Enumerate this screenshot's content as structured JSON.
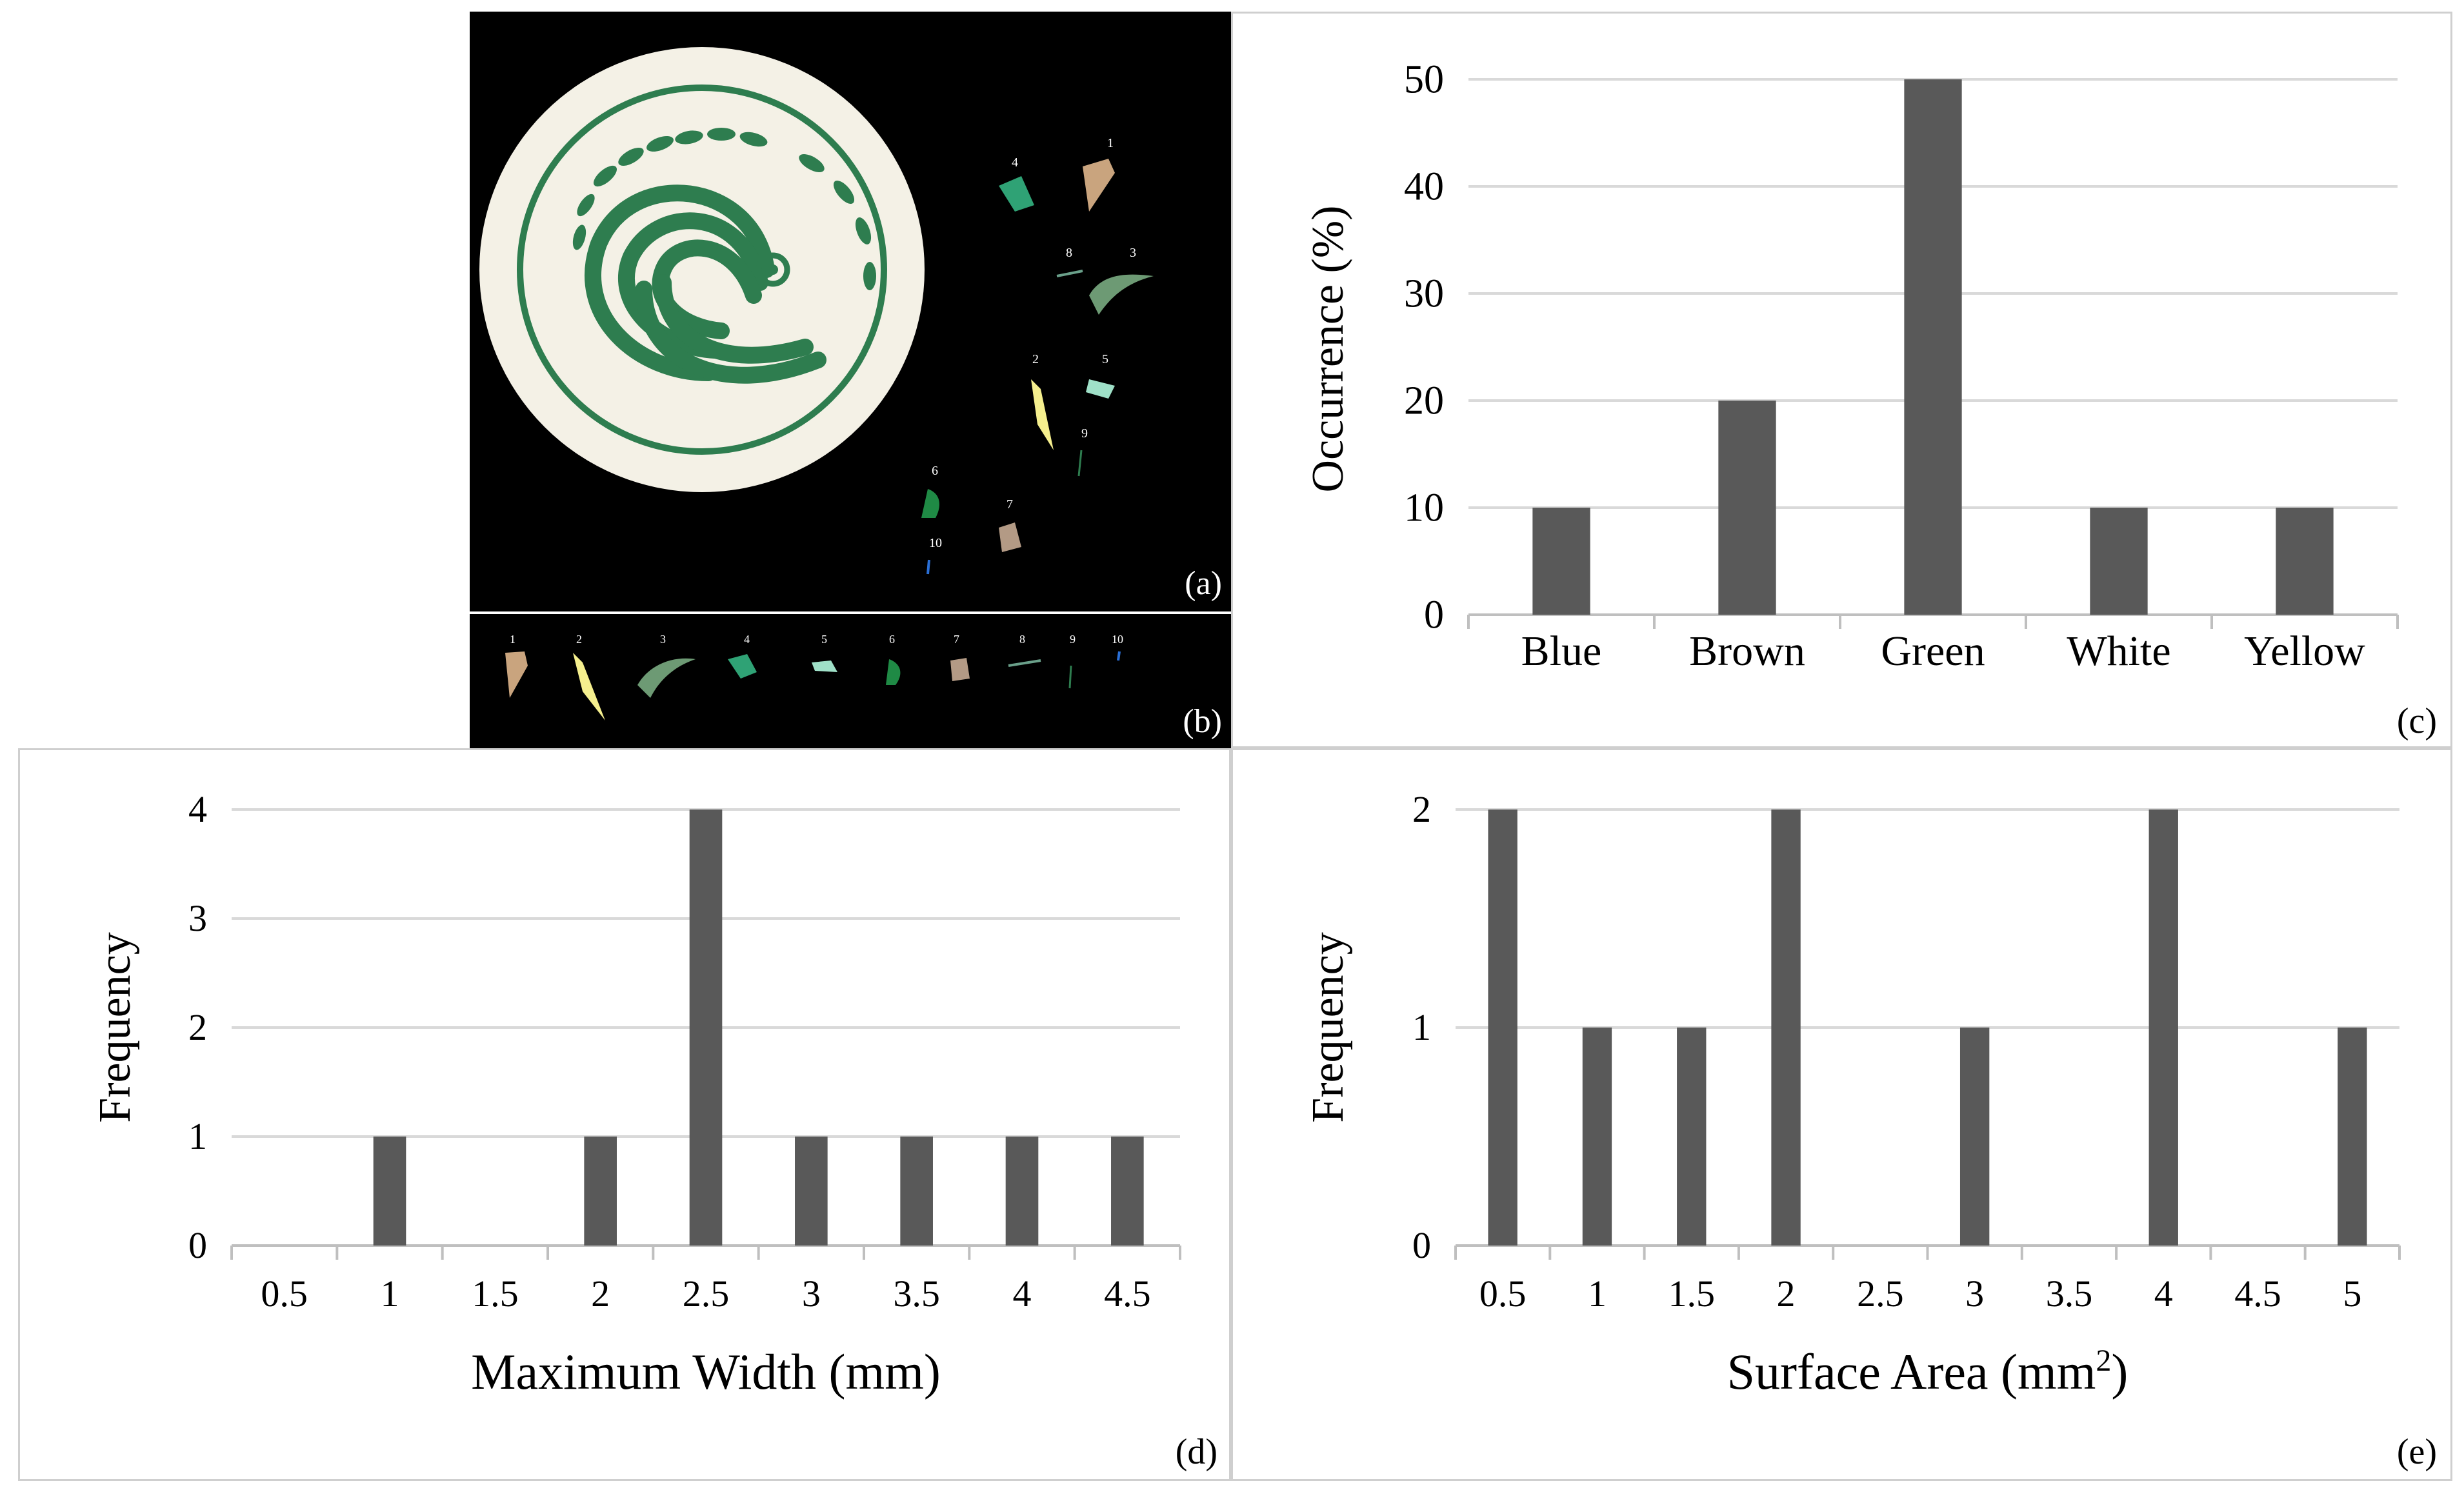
{
  "panels": {
    "a": {
      "label": "(a)",
      "fragment_numbers": [
        "4",
        "1",
        "8",
        "3",
        "2",
        "5",
        "9",
        "6",
        "7",
        "10"
      ]
    },
    "b": {
      "label": "(b)",
      "fragment_numbers": [
        "1",
        "2",
        "3",
        "4",
        "5",
        "6",
        "7",
        "8",
        "9",
        "10"
      ]
    }
  },
  "colors": {
    "bar": "#595959",
    "grid": "#d9d9d9",
    "axis": "#bfbfbf",
    "text": "#000000",
    "dish_bg": "#f4f1e6",
    "dish_ink": "#2e7d4f"
  },
  "chart_data": [
    {
      "id": "c",
      "panel_label": "(c)",
      "type": "bar",
      "categories": [
        "Blue",
        "Brown",
        "Green",
        "White",
        "Yellow"
      ],
      "values": [
        10,
        20,
        50,
        10,
        10
      ],
      "xlabel": "",
      "ylabel": "Occurrence (%)",
      "ylim": [
        0,
        50
      ],
      "yticks": [
        "0",
        "10",
        "20",
        "30",
        "40",
        "50"
      ],
      "grid": true
    },
    {
      "id": "d",
      "panel_label": "(d)",
      "type": "bar",
      "categories": [
        "0.5",
        "1",
        "1.5",
        "2",
        "2.5",
        "3",
        "3.5",
        "4",
        "4.5"
      ],
      "values": [
        0,
        1,
        0,
        1,
        4,
        1,
        1,
        1,
        1
      ],
      "xlabel": "Maximum Width (mm)",
      "ylabel": "Frequency",
      "ylim": [
        0,
        4
      ],
      "yticks": [
        "0",
        "1",
        "2",
        "3",
        "4"
      ],
      "grid": true
    },
    {
      "id": "e",
      "panel_label": "(e)",
      "type": "bar",
      "categories": [
        "0.5",
        "1",
        "1.5",
        "2",
        "2.5",
        "3",
        "3.5",
        "4",
        "4.5",
        "5"
      ],
      "values": [
        2,
        1,
        1,
        2,
        0,
        1,
        0,
        2,
        0,
        1
      ],
      "xlabel": "Surface Area (mm",
      "xlabel_sup": "2",
      "xlabel_end": ")",
      "ylabel": "Frequency",
      "ylim": [
        0,
        2
      ],
      "yticks": [
        "0",
        "1",
        "2"
      ],
      "grid": true
    }
  ]
}
